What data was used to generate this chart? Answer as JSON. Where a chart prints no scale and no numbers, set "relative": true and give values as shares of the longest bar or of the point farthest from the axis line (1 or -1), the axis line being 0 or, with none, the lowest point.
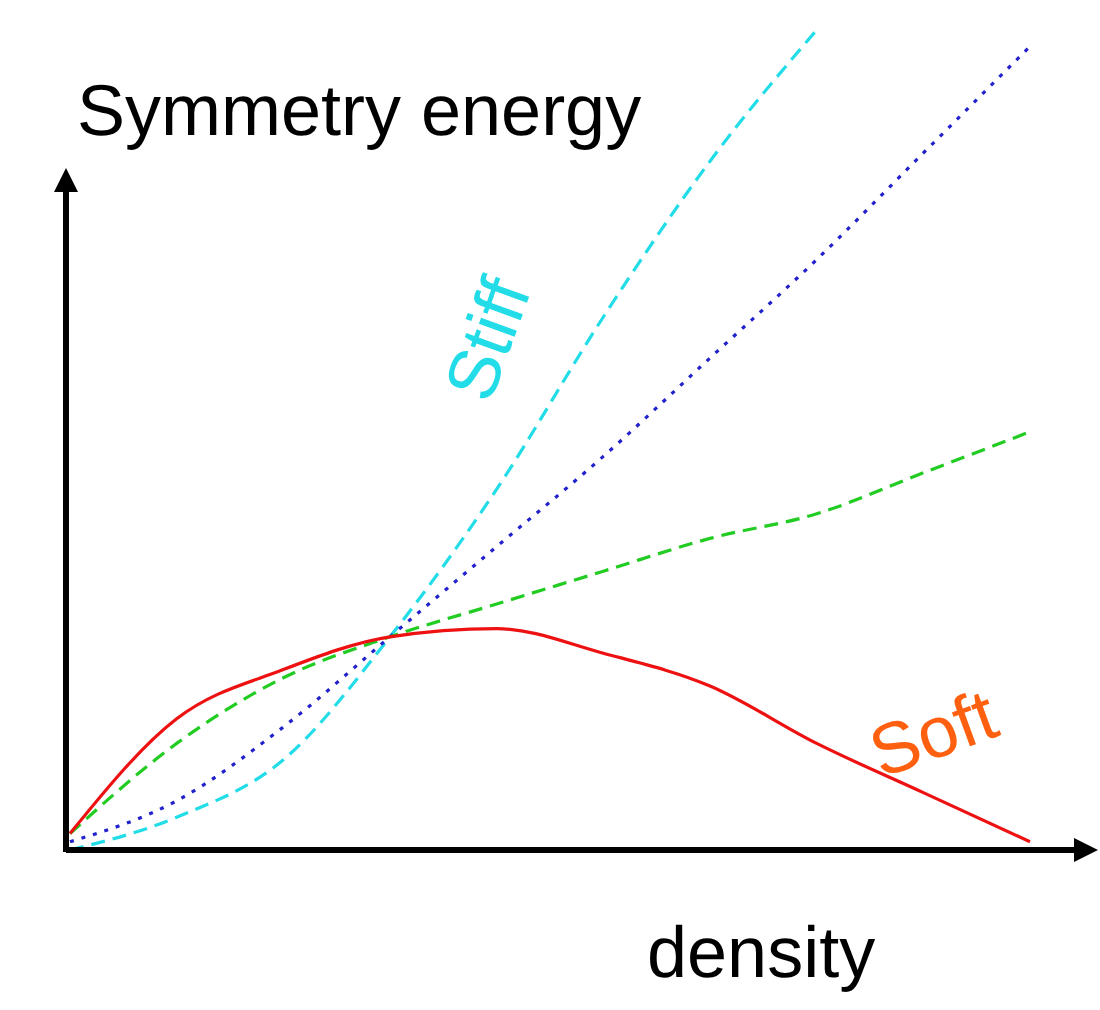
{
  "chart_data": {
    "type": "line",
    "relative": true,
    "xlabel": "density",
    "ylabel": "Symmetry energy",
    "categories": [
      null,
      null,
      null,
      null,
      null,
      null,
      null,
      null,
      null,
      null
    ],
    "series": [
      {
        "color": "#22dde8",
        "line_style": "dashed",
        "values": [
          0,
          0.04,
          0.11,
          0.26,
          0.44,
          0.65,
          0.84,
          1.0,
          null,
          null
        ]
      },
      {
        "color": "#2222cc",
        "line_style": "dotted",
        "values": [
          0.01,
          0.06,
          0.15,
          0.26,
          0.37,
          0.48,
          0.6,
          0.72,
          0.85,
          0.98
        ]
      },
      {
        "color": "#22cc22",
        "line_style": "dashed",
        "values": [
          0.02,
          0.13,
          0.21,
          0.26,
          0.3,
          0.34,
          0.38,
          0.41,
          0.46,
          0.51
        ]
      },
      {
        "color": "#ee1111",
        "line_style": "solid",
        "values": [
          0.02,
          0.16,
          0.22,
          0.26,
          0.27,
          0.24,
          0.2,
          0.13,
          0.07,
          0.01
        ]
      }
    ],
    "annotations": [
      "Stiff",
      "Soft"
    ]
  }
}
